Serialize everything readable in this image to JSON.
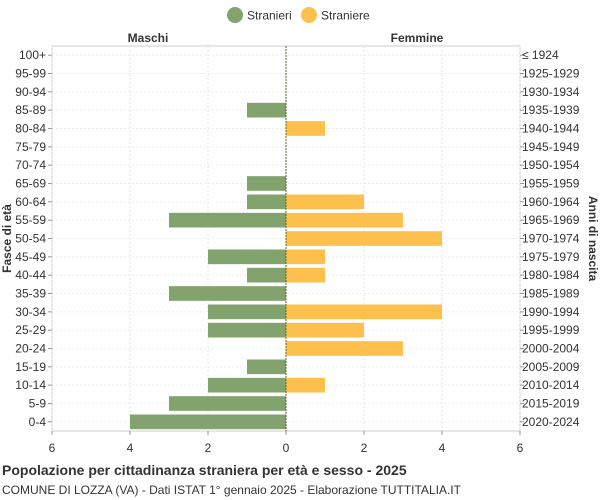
{
  "chart_data": {
    "type": "bar",
    "orientation": "horizontal-population-pyramid",
    "legend": [
      {
        "name": "Stranieri",
        "color": "#82a36e"
      },
      {
        "name": "Straniere",
        "color": "#fec04d"
      }
    ],
    "legend_position": "top-center",
    "left_header": "Maschi",
    "right_header": "Femmine",
    "ylabel_left": "Fasce di età",
    "ylabel_right": "Anni di nascita",
    "age_groups": [
      "100+",
      "95-99",
      "90-94",
      "85-89",
      "80-84",
      "75-79",
      "70-74",
      "65-69",
      "60-64",
      "55-59",
      "50-54",
      "45-49",
      "40-44",
      "35-39",
      "30-34",
      "25-29",
      "20-24",
      "15-19",
      "10-14",
      "5-9",
      "0-4"
    ],
    "birth_years": [
      "≤ 1924",
      "1925-1929",
      "1930-1934",
      "1935-1939",
      "1940-1944",
      "1945-1949",
      "1950-1954",
      "1955-1959",
      "1960-1964",
      "1965-1969",
      "1970-1974",
      "1975-1979",
      "1980-1984",
      "1985-1989",
      "1990-1994",
      "1995-1999",
      "2000-2004",
      "2005-2009",
      "2010-2014",
      "2015-2019",
      "2020-2024"
    ],
    "series": [
      {
        "name": "Stranieri",
        "values": [
          0,
          0,
          0,
          1,
          0,
          0,
          0,
          1,
          1,
          3,
          0,
          2,
          1,
          3,
          2,
          2,
          0,
          1,
          2,
          3,
          4
        ]
      },
      {
        "name": "Straniere",
        "values": [
          0,
          0,
          0,
          0,
          1,
          0,
          0,
          0,
          2,
          3,
          4,
          1,
          1,
          0,
          4,
          2,
          3,
          0,
          1,
          0,
          0
        ]
      }
    ],
    "x_ticks": [
      "6",
      "4",
      "2",
      "0",
      "2",
      "4",
      "6"
    ],
    "xlim": [
      -6,
      6
    ],
    "grid": true,
    "title": "Popolazione per cittadinanza straniera per età e sesso - 2025",
    "subtitle": "COMUNE DI LOZZA (VA) - Dati ISTAT 1° gennaio 2025 - Elaborazione TUTTITALIA.IT"
  }
}
